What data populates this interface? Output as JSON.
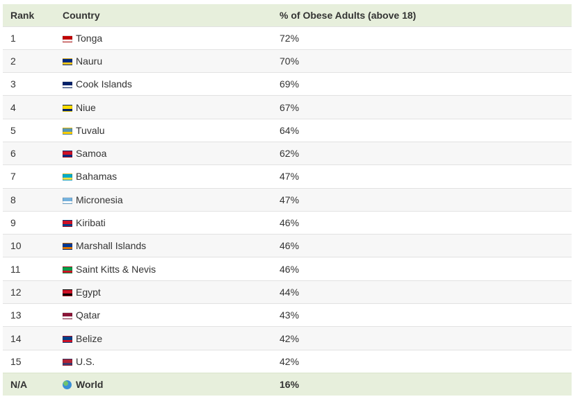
{
  "chart_data": {
    "type": "table",
    "columns": [
      "Rank",
      "Country",
      "% of Obese Adults (above 18)"
    ],
    "rows": [
      {
        "rank": "1",
        "country": "Tonga",
        "value": "72%",
        "flag_icon": "tonga-flag-icon",
        "flag_colors": [
          "#c10000",
          "#ffffff"
        ]
      },
      {
        "rank": "2",
        "country": "Nauru",
        "value": "70%",
        "flag_icon": "nauru-flag-icon",
        "flag_colors": [
          "#002b7f",
          "#ffc61e"
        ]
      },
      {
        "rank": "3",
        "country": "Cook Islands",
        "value": "69%",
        "flag_icon": "cook-islands-flag-icon",
        "flag_colors": [
          "#012169",
          "#ffffff"
        ]
      },
      {
        "rank": "4",
        "country": "Niue",
        "value": "67%",
        "flag_icon": "niue-flag-icon",
        "flag_colors": [
          "#fedd00",
          "#012169"
        ]
      },
      {
        "rank": "5",
        "country": "Tuvalu",
        "value": "64%",
        "flag_icon": "tuvalu-flag-icon",
        "flag_colors": [
          "#5b97b1",
          "#ffce00"
        ]
      },
      {
        "rank": "6",
        "country": "Samoa",
        "value": "62%",
        "flag_icon": "samoa-flag-icon",
        "flag_colors": [
          "#ce1126",
          "#002b7f"
        ]
      },
      {
        "rank": "7",
        "country": "Bahamas",
        "value": "47%",
        "flag_icon": "bahamas-flag-icon",
        "flag_colors": [
          "#00abc9",
          "#fae042"
        ]
      },
      {
        "rank": "8",
        "country": "Micronesia",
        "value": "47%",
        "flag_icon": "micronesia-flag-icon",
        "flag_colors": [
          "#75b2dd",
          "#ffffff"
        ]
      },
      {
        "rank": "9",
        "country": "Kiribati",
        "value": "46%",
        "flag_icon": "kiribati-flag-icon",
        "flag_colors": [
          "#ce1126",
          "#003f87"
        ]
      },
      {
        "rank": "10",
        "country": "Marshall Islands",
        "value": "46%",
        "flag_icon": "marshall-islands-flag-icon",
        "flag_colors": [
          "#003893",
          "#dd7500"
        ]
      },
      {
        "rank": "11",
        "country": "Saint Kitts & Nevis",
        "value": "46%",
        "flag_icon": "saint-kitts-nevis-flag-icon",
        "flag_colors": [
          "#009e49",
          "#ce1126"
        ]
      },
      {
        "rank": "12",
        "country": "Egypt",
        "value": "44%",
        "flag_icon": "egypt-flag-icon",
        "flag_colors": [
          "#ce1126",
          "#000000"
        ]
      },
      {
        "rank": "13",
        "country": "Qatar",
        "value": "43%",
        "flag_icon": "qatar-flag-icon",
        "flag_colors": [
          "#8a1538",
          "#ffffff"
        ]
      },
      {
        "rank": "14",
        "country": "Belize",
        "value": "42%",
        "flag_icon": "belize-flag-icon",
        "flag_colors": [
          "#003f87",
          "#ce1126"
        ]
      },
      {
        "rank": "15",
        "country": "U.S.",
        "value": "42%",
        "flag_icon": "us-flag-icon",
        "flag_colors": [
          "#b22234",
          "#3c3b6e"
        ]
      }
    ],
    "footer": {
      "rank": "N/A",
      "country": "World",
      "value": "16%",
      "icon": "globe-icon"
    }
  },
  "colors": {
    "header_bg": "#e7efdc",
    "footer_bg": "#e7efdc",
    "stripe_bg": "#f7f7f7",
    "text": "#333333"
  }
}
